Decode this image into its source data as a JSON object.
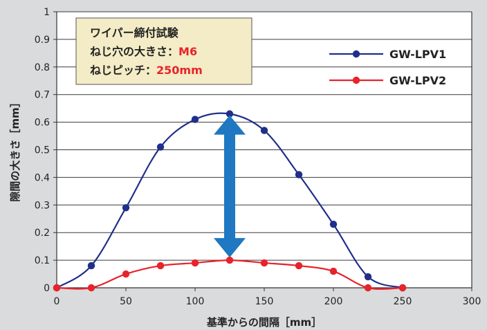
{
  "chart_data": {
    "type": "line",
    "xlabel": "基準からの間隔［mm］",
    "ylabel": "隙間の大きさ［mm］",
    "xlim": [
      0,
      300
    ],
    "ylim": [
      0,
      1
    ],
    "x_ticks": [
      "0",
      "50",
      "100",
      "150",
      "200",
      "250",
      "300"
    ],
    "y_ticks": [
      "0",
      "0.1",
      "0.2",
      "0.3",
      "0.4",
      "0.5",
      "0.6",
      "0.7",
      "0.8",
      "0.9",
      "1"
    ],
    "grid": true,
    "legend_position": "top-right",
    "series": [
      {
        "name": "GW-LPV1",
        "color": "#1f2f8a",
        "x": [
          0,
          25,
          50,
          75,
          100,
          125,
          150,
          175,
          200,
          225,
          250
        ],
        "y": [
          0,
          0.08,
          0.29,
          0.51,
          0.61,
          0.63,
          0.57,
          0.41,
          0.23,
          0.04,
          0
        ]
      },
      {
        "name": "GW-LPV2",
        "color": "#e8232a",
        "x": [
          0,
          25,
          50,
          75,
          100,
          125,
          150,
          175,
          200,
          225,
          250
        ],
        "y": [
          0,
          0,
          0.05,
          0.08,
          0.09,
          0.1,
          0.09,
          0.08,
          0.06,
          0,
          0
        ]
      }
    ],
    "annotation": {
      "lines": [
        {
          "text": "ワイパー締付試験",
          "accent": ""
        },
        {
          "text": "ねじ穴の大きさ：",
          "accent": "M6"
        },
        {
          "text": "ねじピッチ：",
          "accent": "250mm"
        }
      ],
      "box_color": "#f3ecc6",
      "accent_color": "#e8232a"
    },
    "double_arrow": {
      "x": 125,
      "y_from": 0.1,
      "y_to": 0.63,
      "color": "#1f78c1"
    }
  }
}
